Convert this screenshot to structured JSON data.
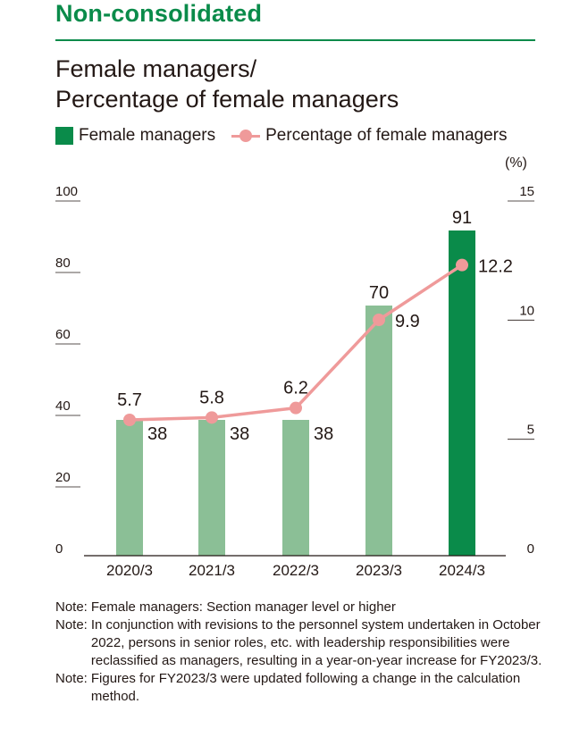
{
  "header": {
    "section_title": "Non-consolidated",
    "chart_title_line1": "Female managers/",
    "chart_title_line2": "Percentage of female managers"
  },
  "legend": {
    "bar_label": "Female managers",
    "line_label": "Percentage of female managers"
  },
  "unit_label": "(%)",
  "colors": {
    "accent": "#0a8b4a",
    "bar_light": "#8bbf96",
    "bar_dark": "#0a8b4a",
    "line": "#ef9a9a"
  },
  "chart_data": {
    "type": "bar",
    "categories": [
      "2020/3",
      "2021/3",
      "2022/3",
      "2023/3",
      "2024/3"
    ],
    "series": [
      {
        "name": "Female managers",
        "type": "bar",
        "axis": "left",
        "values": [
          38,
          38,
          38,
          70,
          91
        ],
        "labels": [
          "38",
          "38",
          "38",
          "70",
          "91"
        ]
      },
      {
        "name": "Percentage of female managers",
        "type": "line",
        "axis": "right",
        "values": [
          5.7,
          5.8,
          6.2,
          9.9,
          12.2
        ],
        "labels": [
          "5.7",
          "5.8",
          "6.2",
          "9.9",
          "12.2"
        ]
      }
    ],
    "y_left": {
      "ylim": [
        0,
        100
      ],
      "ticks": [
        "0",
        "20",
        "40",
        "60",
        "80",
        "100"
      ]
    },
    "y_right": {
      "ylim": [
        0,
        15
      ],
      "ticks": [
        "0",
        "5",
        "10",
        "15"
      ]
    },
    "highlight_category": "2024/3",
    "grid": false
  },
  "notes": [
    {
      "label": "Note:",
      "text": "Female managers: Section manager level or higher"
    },
    {
      "label": "Note:",
      "text": "In conjunction with revisions to the personnel system undertaken in October 2022, persons in senior roles, etc. with leadership responsibilities were reclassified as managers, resulting in a year-on-year increase for FY2023/3."
    },
    {
      "label": "Note:",
      "text": "Figures for FY2023/3 were updated following a change in the calculation method."
    }
  ]
}
